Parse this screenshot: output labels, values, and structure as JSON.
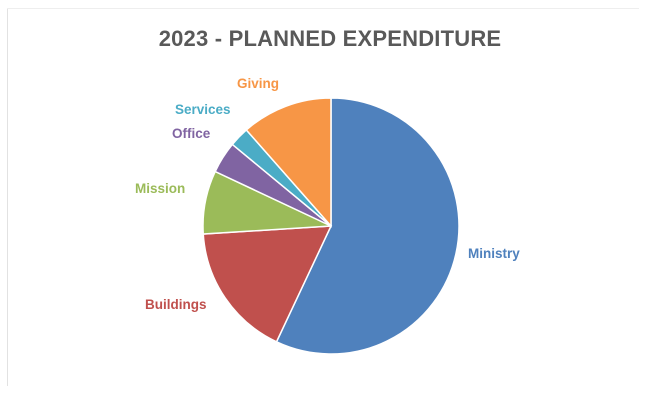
{
  "chart_data": {
    "type": "pie",
    "title": "2023 - PLANNED EXPENDITURE",
    "start_angle_deg": 0,
    "direction": "clockwise",
    "slices": [
      {
        "label": "Ministry",
        "value": 57,
        "color": "#4F81BD"
      },
      {
        "label": "Buildings",
        "value": 17,
        "color": "#C0504D"
      },
      {
        "label": "Mission",
        "value": 8,
        "color": "#9BBB59"
      },
      {
        "label": "Office",
        "value": 4,
        "color": "#8064A2"
      },
      {
        "label": "Services",
        "value": 2.5,
        "color": "#4BACC6"
      },
      {
        "label": "Giving",
        "value": 11.5,
        "color": "#F79646"
      }
    ],
    "legend": "none",
    "data_labels": "category-name-outside"
  }
}
